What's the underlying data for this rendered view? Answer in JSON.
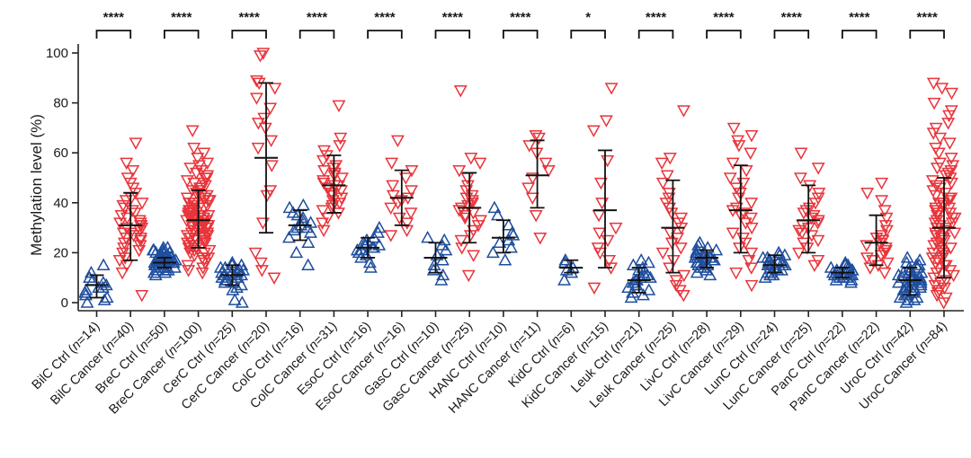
{
  "chart_data": {
    "type": "scatter",
    "ylabel": "Methylation level (%)",
    "xlabel": "",
    "ylim": [
      0,
      100
    ],
    "yticks": [
      0,
      20,
      40,
      60,
      80,
      100
    ],
    "colors": {
      "ctrl": "#1f4e9e",
      "cancer": "#e8353b",
      "summary": "#111111"
    },
    "groups": [
      {
        "label": "BilC Ctrl (",
        "n": "n",
        "eq": "=14)",
        "kind": "ctrl",
        "mean": 7,
        "sd_low": 2,
        "sd_high": 11,
        "points": [
          0,
          1,
          2,
          3,
          4,
          5,
          6,
          6,
          7,
          8,
          9,
          10,
          12,
          15
        ]
      },
      {
        "label": "BilC Cancer (",
        "n": "n",
        "eq": "=40)",
        "kind": "cancer",
        "mean": 31,
        "sd_low": 17,
        "sd_high": 44,
        "points": [
          3,
          12,
          15,
          17,
          18,
          20,
          21,
          22,
          23,
          24,
          25,
          26,
          26,
          27,
          28,
          28,
          29,
          30,
          30,
          31,
          31,
          32,
          32,
          33,
          34,
          35,
          36,
          37,
          38,
          39,
          40,
          41,
          42,
          44,
          46,
          48,
          50,
          53,
          56,
          64
        ]
      },
      {
        "label": "BreC Ctrl (",
        "n": "n",
        "eq": "=50)",
        "kind": "ctrl",
        "mean": 16,
        "sd_low": 14,
        "sd_high": 18,
        "points": [
          11,
          12,
          12,
          13,
          13,
          13,
          14,
          14,
          14,
          14,
          15,
          15,
          15,
          15,
          15,
          15,
          16,
          16,
          16,
          16,
          16,
          16,
          16,
          16,
          16,
          17,
          17,
          17,
          17,
          17,
          17,
          17,
          18,
          18,
          18,
          18,
          18,
          18,
          19,
          19,
          19,
          19,
          20,
          20,
          20,
          21,
          21,
          21,
          22,
          22
        ]
      },
      {
        "label": "BreC Cancer (",
        "n": "n",
        "eq": "=100)",
        "kind": "cancer",
        "mean": 33,
        "sd_low": 22,
        "sd_high": 45,
        "points": [
          12,
          13,
          14,
          15,
          16,
          17,
          18,
          18,
          19,
          20,
          20,
          21,
          21,
          22,
          22,
          23,
          23,
          24,
          24,
          25,
          25,
          25,
          26,
          26,
          26,
          27,
          27,
          27,
          28,
          28,
          28,
          29,
          29,
          29,
          30,
          30,
          30,
          30,
          31,
          31,
          31,
          31,
          32,
          32,
          32,
          32,
          33,
          33,
          33,
          33,
          34,
          34,
          34,
          34,
          35,
          35,
          35,
          35,
          36,
          36,
          36,
          37,
          37,
          37,
          38,
          38,
          38,
          39,
          39,
          40,
          40,
          40,
          41,
          41,
          42,
          42,
          43,
          43,
          44,
          44,
          45,
          45,
          46,
          46,
          47,
          48,
          48,
          49,
          50,
          50,
          51,
          52,
          53,
          54,
          55,
          56,
          58,
          60,
          62,
          69
        ]
      },
      {
        "label": "CerC Ctrl (",
        "n": "n",
        "eq": "=25)",
        "kind": "ctrl",
        "mean": 11,
        "sd_low": 7,
        "sd_high": 15,
        "points": [
          0,
          1,
          5,
          6,
          7,
          8,
          8,
          9,
          9,
          10,
          10,
          11,
          11,
          11,
          12,
          12,
          12,
          13,
          13,
          13,
          14,
          14,
          15,
          15,
          16
        ]
      },
      {
        "label": "CerC Cancer (",
        "n": "n",
        "eq": "=20)",
        "kind": "cancer",
        "mean": 58,
        "sd_low": 28,
        "sd_high": 88,
        "points": [
          10,
          13,
          16,
          20,
          32,
          43,
          45,
          55,
          62,
          65,
          70,
          72,
          74,
          78,
          82,
          86,
          88,
          89,
          99,
          100
        ]
      },
      {
        "label": "ColC Ctrl (",
        "n": "n",
        "eq": "=16)",
        "kind": "ctrl",
        "mean": 31,
        "sd_low": 25,
        "sd_high": 37,
        "points": [
          15,
          20,
          24,
          26,
          28,
          29,
          30,
          30,
          31,
          32,
          33,
          34,
          35,
          36,
          38,
          39
        ]
      },
      {
        "label": "ColC Cancer (",
        "n": "n",
        "eq": "=31)",
        "kind": "cancer",
        "mean": 47,
        "sd_low": 36,
        "sd_high": 59,
        "points": [
          29,
          32,
          34,
          36,
          37,
          38,
          39,
          40,
          41,
          42,
          43,
          44,
          45,
          46,
          46,
          47,
          47,
          48,
          49,
          50,
          51,
          52,
          53,
          54,
          55,
          57,
          59,
          61,
          63,
          66,
          79
        ]
      },
      {
        "label": "EsoC Ctrl (",
        "n": "n",
        "eq": "=16)",
        "kind": "ctrl",
        "mean": 22,
        "sd_low": 18,
        "sd_high": 26,
        "points": [
          14,
          16,
          18,
          19,
          20,
          21,
          21,
          22,
          22,
          23,
          23,
          24,
          25,
          26,
          28,
          30
        ]
      },
      {
        "label": "EsoC Cancer (",
        "n": "n",
        "eq": "=16)",
        "kind": "cancer",
        "mean": 42,
        "sd_low": 31,
        "sd_high": 53,
        "points": [
          27,
          29,
          32,
          34,
          36,
          38,
          40,
          41,
          42,
          43,
          45,
          47,
          50,
          53,
          56,
          65
        ]
      },
      {
        "label": "GasC Ctrl (",
        "n": "n",
        "eq": "=10)",
        "kind": "ctrl",
        "mean": 18,
        "sd_low": 12,
        "sd_high": 24,
        "points": [
          9,
          11,
          13,
          15,
          17,
          19,
          21,
          23,
          25,
          26
        ]
      },
      {
        "label": "GasC Cancer (",
        "n": "n",
        "eq": "=25)",
        "kind": "cancer",
        "mean": 38,
        "sd_low": 24,
        "sd_high": 52,
        "points": [
          11,
          19,
          22,
          25,
          27,
          29,
          31,
          33,
          34,
          35,
          36,
          37,
          38,
          39,
          40,
          41,
          42,
          43,
          45,
          47,
          50,
          53,
          56,
          58,
          85
        ]
      },
      {
        "label": "HANC Ctrl (",
        "n": "n",
        "eq": "=10)",
        "kind": "ctrl",
        "mean": 26,
        "sd_low": 20,
        "sd_high": 33,
        "points": [
          17,
          20,
          22,
          24,
          25,
          27,
          28,
          31,
          35,
          38
        ]
      },
      {
        "label": "HANC Cancer (",
        "n": "n",
        "eq": "=11)",
        "kind": "cancer",
        "mean": 51,
        "sd_low": 38,
        "sd_high": 65,
        "points": [
          26,
          35,
          42,
          46,
          50,
          53,
          56,
          60,
          63,
          66,
          67
        ]
      },
      {
        "label": "KidC Ctrl (",
        "n": "n",
        "eq": "=6)",
        "kind": "ctrl",
        "mean": 14,
        "sd_low": 12,
        "sd_high": 17,
        "points": [
          9,
          12,
          13,
          14,
          16,
          17
        ]
      },
      {
        "label": "KidC Cancer (",
        "n": "n",
        "eq": "=15)",
        "kind": "cancer",
        "mean": 37,
        "sd_low": 14,
        "sd_high": 61,
        "points": [
          6,
          14,
          17,
          20,
          22,
          25,
          28,
          30,
          35,
          40,
          48,
          57,
          69,
          73,
          86
        ]
      },
      {
        "label": "Leuk Ctrl (",
        "n": "n",
        "eq": "=21)",
        "kind": "ctrl",
        "mean": 9,
        "sd_low": 4,
        "sd_high": 14,
        "points": [
          2,
          3,
          4,
          5,
          6,
          7,
          7,
          8,
          8,
          9,
          9,
          10,
          10,
          11,
          11,
          12,
          13,
          14,
          15,
          16,
          17
        ]
      },
      {
        "label": "Leuk Cancer (",
        "n": "n",
        "eq": "=25)",
        "kind": "cancer",
        "mean": 30,
        "sd_low": 12,
        "sd_high": 49,
        "points": [
          3,
          5,
          7,
          9,
          11,
          14,
          17,
          20,
          22,
          24,
          26,
          28,
          30,
          32,
          34,
          36,
          38,
          40,
          42,
          44,
          48,
          51,
          56,
          58,
          77
        ]
      },
      {
        "label": "LivC Ctrl (",
        "n": "n",
        "eq": "=28)",
        "kind": "ctrl",
        "mean": 18,
        "sd_low": 14,
        "sd_high": 21,
        "points": [
          11,
          12,
          13,
          14,
          14,
          15,
          15,
          16,
          16,
          16,
          17,
          17,
          17,
          18,
          18,
          18,
          18,
          19,
          19,
          19,
          20,
          20,
          20,
          21,
          21,
          22,
          23,
          24
        ]
      },
      {
        "label": "LivC Cancer (",
        "n": "n",
        "eq": "=29)",
        "kind": "cancer",
        "mean": 37,
        "sd_low": 20,
        "sd_high": 55,
        "points": [
          7,
          12,
          14,
          17,
          20,
          22,
          24,
          26,
          28,
          30,
          32,
          34,
          35,
          36,
          37,
          38,
          40,
          42,
          44,
          46,
          48,
          50,
          53,
          56,
          60,
          63,
          65,
          67,
          70
        ]
      },
      {
        "label": "LunC Ctrl (",
        "n": "n",
        "eq": "=24)",
        "kind": "ctrl",
        "mean": 15,
        "sd_low": 12,
        "sd_high": 19,
        "points": [
          10,
          11,
          11,
          12,
          12,
          13,
          13,
          14,
          14,
          14,
          15,
          15,
          15,
          15,
          16,
          16,
          16,
          17,
          17,
          18,
          18,
          19,
          19,
          20
        ]
      },
      {
        "label": "LunC Cancer (",
        "n": "n",
        "eq": "=25)",
        "kind": "cancer",
        "mean": 33,
        "sd_low": 20,
        "sd_high": 47,
        "points": [
          15,
          17,
          20,
          22,
          24,
          25,
          27,
          28,
          29,
          30,
          31,
          32,
          33,
          34,
          35,
          36,
          37,
          38,
          40,
          42,
          44,
          47,
          50,
          54,
          60
        ]
      },
      {
        "label": "PanC Ctrl (",
        "n": "n",
        "eq": "=22)",
        "kind": "ctrl",
        "mean": 12,
        "sd_low": 10,
        "sd_high": 14,
        "points": [
          8,
          9,
          9,
          10,
          10,
          10,
          11,
          11,
          11,
          11,
          12,
          12,
          12,
          12,
          13,
          13,
          13,
          14,
          14,
          15,
          15,
          16
        ]
      },
      {
        "label": "PanC Cancer (",
        "n": "n",
        "eq": "=22)",
        "kind": "cancer",
        "mean": 24,
        "sd_low": 15,
        "sd_high": 35,
        "points": [
          12,
          14,
          15,
          16,
          17,
          18,
          19,
          20,
          21,
          22,
          23,
          24,
          25,
          26,
          27,
          29,
          31,
          34,
          37,
          41,
          44,
          48
        ]
      },
      {
        "label": "UroC Ctrl (",
        "n": "n",
        "eq": "=42)",
        "kind": "ctrl",
        "mean": 9,
        "sd_low": 3,
        "sd_high": 14,
        "points": [
          0,
          1,
          1,
          2,
          2,
          3,
          3,
          4,
          4,
          5,
          5,
          5,
          6,
          6,
          6,
          7,
          7,
          7,
          8,
          8,
          8,
          9,
          9,
          9,
          10,
          10,
          10,
          11,
          11,
          11,
          12,
          12,
          12,
          13,
          13,
          14,
          14,
          15,
          15,
          16,
          17,
          18
        ]
      },
      {
        "label": "UroC Cancer (",
        "n": "n",
        "eq": "=84)",
        "kind": "cancer",
        "mean": 30,
        "sd_low": 10,
        "sd_high": 50,
        "points": [
          0,
          2,
          3,
          4,
          5,
          6,
          7,
          8,
          9,
          10,
          11,
          12,
          13,
          14,
          15,
          15,
          16,
          17,
          18,
          18,
          19,
          20,
          20,
          21,
          22,
          22,
          23,
          24,
          24,
          25,
          26,
          26,
          27,
          28,
          28,
          29,
          30,
          30,
          31,
          32,
          32,
          33,
          34,
          34,
          35,
          36,
          36,
          37,
          38,
          38,
          39,
          40,
          40,
          41,
          42,
          42,
          43,
          44,
          45,
          46,
          47,
          48,
          49,
          50,
          51,
          52,
          53,
          54,
          55,
          56,
          58,
          60,
          62,
          64,
          66,
          68,
          70,
          72,
          75,
          77,
          80,
          84,
          86,
          88
        ]
      }
    ],
    "significance": [
      "****",
      "****",
      "****",
      "****",
      "****",
      "****",
      "****",
      "*",
      "****",
      "****",
      "****",
      "****",
      "****"
    ]
  }
}
